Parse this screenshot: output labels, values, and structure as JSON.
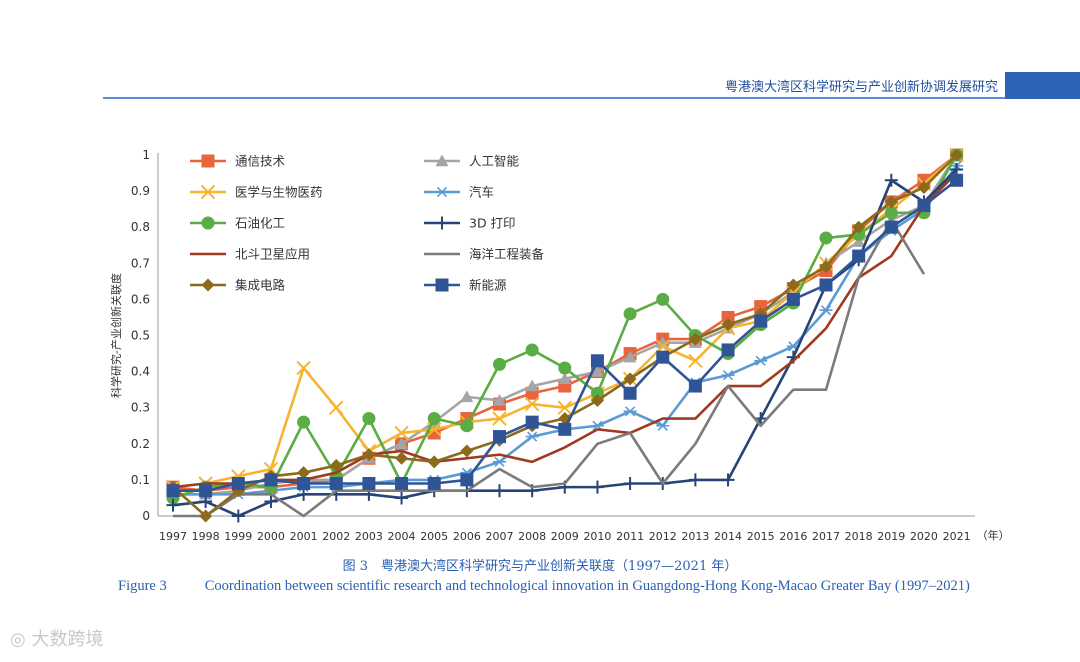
{
  "header": {
    "title": "粤港澳大湾区科学研究与产业创新协调发展研究",
    "accent_color": "#2c62b8"
  },
  "chart_data": {
    "type": "line",
    "title": "",
    "xlabel": "（年）",
    "ylabel": "科学研究-产业创新关联度",
    "ylim": [
      0,
      1
    ],
    "yticks": [
      "0",
      "0.1",
      "0.2",
      "0.3",
      "0.4",
      "0.5",
      "0.6",
      "0.7",
      "0.8",
      "0.9",
      "1"
    ],
    "x": [
      "1997",
      "1998",
      "1999",
      "2000",
      "2001",
      "2002",
      "2003",
      "2004",
      "2005",
      "2006",
      "2007",
      "2008",
      "2009",
      "2010",
      "2011",
      "2012",
      "2013",
      "2014",
      "2015",
      "2016",
      "2017",
      "2018",
      "2019",
      "2020",
      "2021"
    ],
    "legend_position": "top-left",
    "series": [
      {
        "name": "通信技术",
        "color": "#e8643c",
        "marker": "square",
        "values": [
          0.08,
          0.07,
          0.08,
          0.08,
          0.09,
          0.1,
          0.16,
          0.2,
          0.23,
          0.27,
          0.31,
          0.34,
          0.36,
          0.4,
          0.45,
          0.49,
          0.49,
          0.55,
          0.58,
          0.63,
          0.68,
          0.79,
          0.87,
          0.93,
          1.0
        ]
      },
      {
        "name": "人工智能",
        "color": "#a5a5a5",
        "marker": "triangle",
        "values": [
          0.06,
          0.06,
          0.07,
          0.09,
          0.1,
          0.1,
          0.16,
          0.2,
          0.26,
          0.33,
          0.32,
          0.36,
          0.38,
          0.4,
          0.44,
          0.48,
          0.48,
          0.52,
          0.56,
          0.62,
          0.7,
          0.76,
          0.82,
          0.86,
          1.0
        ]
      },
      {
        "name": "医学与生物医药",
        "color": "#f5b431",
        "marker": "x",
        "values": [
          0.08,
          0.09,
          0.11,
          0.13,
          0.41,
          0.3,
          0.18,
          0.23,
          0.24,
          0.26,
          0.27,
          0.31,
          0.3,
          0.34,
          0.38,
          0.47,
          0.43,
          0.52,
          0.54,
          0.62,
          0.7,
          0.78,
          0.85,
          0.92,
          1.0
        ]
      },
      {
        "name": "汽车",
        "color": "#5b9bd5",
        "marker": "star",
        "values": [
          0.06,
          0.06,
          0.06,
          0.07,
          0.08,
          0.08,
          0.09,
          0.1,
          0.1,
          0.12,
          0.15,
          0.22,
          0.24,
          0.25,
          0.29,
          0.25,
          0.37,
          0.39,
          0.43,
          0.47,
          0.57,
          0.72,
          0.79,
          0.85,
          0.97
        ]
      },
      {
        "name": "石油化工",
        "color": "#5aac44",
        "marker": "circle",
        "values": [
          0.05,
          0.08,
          0.09,
          0.08,
          0.26,
          0.11,
          0.27,
          0.09,
          0.27,
          0.25,
          0.42,
          0.46,
          0.41,
          0.34,
          0.56,
          0.6,
          0.5,
          0.45,
          0.53,
          0.59,
          0.77,
          0.78,
          0.84,
          0.84,
          1.0
        ]
      },
      {
        "name": "3D 打印",
        "color": "#264478",
        "marker": "plus",
        "values": [
          0.03,
          0.04,
          0.0,
          0.04,
          0.06,
          0.06,
          0.06,
          0.05,
          0.07,
          0.07,
          0.07,
          0.07,
          0.08,
          0.08,
          0.09,
          0.09,
          0.1,
          0.1,
          0.27,
          0.44,
          0.64,
          0.71,
          0.93,
          0.87,
          0.96
        ]
      },
      {
        "name": "北斗卫星应用",
        "color": "#9e3b20",
        "marker": "none",
        "values": [
          0.08,
          0.09,
          0.09,
          0.1,
          0.1,
          0.12,
          0.17,
          0.18,
          0.15,
          0.16,
          0.17,
          0.15,
          0.19,
          0.24,
          0.23,
          0.27,
          0.27,
          0.36,
          0.36,
          0.43,
          0.52,
          0.66,
          0.72,
          0.86,
          0.95
        ]
      },
      {
        "name": "海洋工程装备",
        "color": "#7b7b7b",
        "marker": "none",
        "values": [
          0.0,
          0.0,
          0.06,
          0.06,
          0.0,
          0.07,
          0.07,
          0.07,
          0.07,
          0.07,
          0.13,
          0.08,
          0.09,
          0.2,
          0.23,
          0.09,
          0.2,
          0.36,
          0.25,
          0.35,
          0.35,
          0.66,
          0.82,
          0.67,
          null
        ]
      },
      {
        "name": "集成电路",
        "color": "#8b6a1c",
        "marker": "diamond",
        "values": [
          0.08,
          0.0,
          0.07,
          0.11,
          0.12,
          0.14,
          0.17,
          0.16,
          0.15,
          0.18,
          0.21,
          0.25,
          0.27,
          0.32,
          0.38,
          0.44,
          0.49,
          0.53,
          0.56,
          0.64,
          0.69,
          0.8,
          0.87,
          0.91,
          1.0
        ]
      },
      {
        "name": "新能源",
        "color": "#2f5597",
        "marker": "square",
        "values": [
          0.07,
          0.07,
          0.09,
          0.1,
          0.09,
          0.09,
          0.09,
          0.09,
          0.09,
          0.1,
          0.22,
          0.26,
          0.24,
          0.43,
          0.34,
          0.44,
          0.36,
          0.46,
          0.54,
          0.6,
          0.64,
          0.72,
          0.8,
          0.86,
          0.93
        ]
      }
    ]
  },
  "captions": {
    "cn": "图 3　粤港澳大湾区科学研究与产业创新关联度（1997—2021 年）",
    "en_label": "Figure 3",
    "en_text": "Coordination between scientific research and technological innovation in Guangdong-Hong Kong-Macao Greater Bay (1997–2021)"
  },
  "watermark": "大数跨境"
}
